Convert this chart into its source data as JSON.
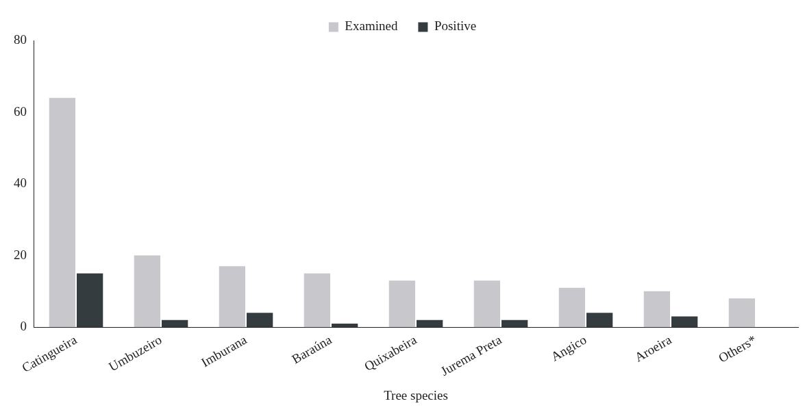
{
  "chart_data": {
    "type": "bar",
    "xlabel": "Tree species",
    "categories": [
      "Catingueira",
      "Umbuzeiro",
      "Imburana",
      "Baraúna",
      "Quixabeira",
      "Jurema Preta",
      "Angico",
      "Aroeira",
      "Others*"
    ],
    "series": [
      {
        "name": "Examined",
        "color": "#c8c7cc",
        "values": [
          64,
          20,
          17,
          15,
          13,
          13,
          11,
          10,
          8
        ]
      },
      {
        "name": "Positive",
        "color": "#353c40",
        "values": [
          15,
          2,
          4,
          1,
          2,
          2,
          4,
          3,
          0
        ]
      }
    ],
    "ylim": [
      0,
      80
    ],
    "yticks": [
      0,
      20,
      40,
      60,
      80
    ],
    "grid": false,
    "legend": "top"
  }
}
